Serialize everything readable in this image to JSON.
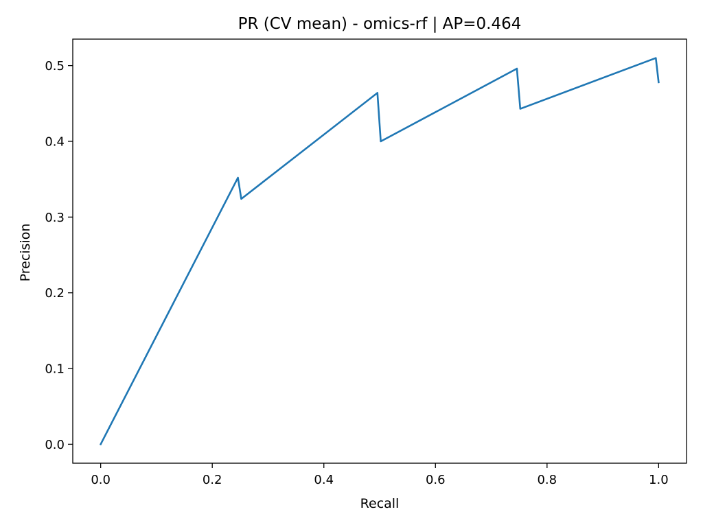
{
  "chart_data": {
    "type": "line",
    "title": "PR (CV mean) - omics-rf | AP=0.464",
    "xlabel": "Recall",
    "ylabel": "Precision",
    "xlim": [
      -0.05,
      1.05
    ],
    "ylim": [
      -0.025,
      0.535
    ],
    "xticks": [
      0.0,
      0.2,
      0.4,
      0.6,
      0.8,
      1.0
    ],
    "xtick_labels": [
      "0.0",
      "0.2",
      "0.4",
      "0.6",
      "0.8",
      "1.0"
    ],
    "yticks": [
      0.0,
      0.1,
      0.2,
      0.3,
      0.4,
      0.5
    ],
    "ytick_labels": [
      "0.0",
      "0.1",
      "0.2",
      "0.3",
      "0.4",
      "0.5"
    ],
    "grid": false,
    "legend": null,
    "series": [
      {
        "color": "#1f77b4",
        "x": [
          0.0,
          0.246,
          0.252,
          0.496,
          0.502,
          0.746,
          0.752,
          0.995,
          1.0
        ],
        "y": [
          0.0,
          0.352,
          0.324,
          0.464,
          0.4,
          0.496,
          0.443,
          0.51,
          0.478
        ]
      }
    ]
  }
}
